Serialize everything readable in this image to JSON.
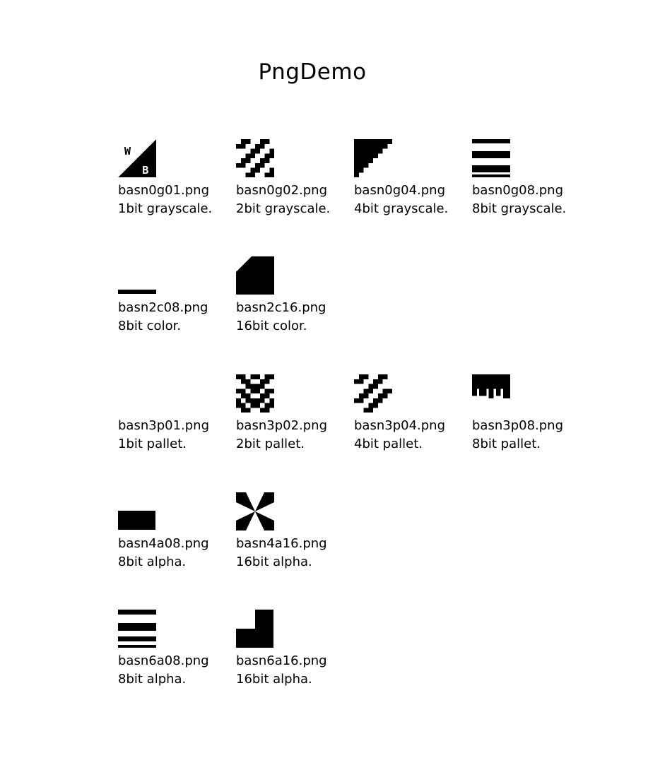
{
  "page": {
    "title": "PngDemo"
  },
  "images": [
    {
      "icon": "basn0g01-thumbnail",
      "filename": "basn0g01.png",
      "description": "1bit grayscale."
    },
    {
      "icon": "basn0g02-thumbnail",
      "filename": "basn0g02.png",
      "description": "2bit grayscale."
    },
    {
      "icon": "basn0g04-thumbnail",
      "filename": "basn0g04.png",
      "description": "4bit grayscale."
    },
    {
      "icon": "basn0g08-thumbnail",
      "filename": "basn0g08.png",
      "description": "8bit grayscale."
    },
    {
      "icon": "basn2c08-thumbnail",
      "filename": "basn2c08.png",
      "description": "8bit color."
    },
    {
      "icon": "basn2c16-thumbnail",
      "filename": "basn2c16.png",
      "description": "16bit color."
    },
    {
      "icon": "basn3p01-thumbnail",
      "filename": "basn3p01.png",
      "description": "1bit pallet."
    },
    {
      "icon": "basn3p02-thumbnail",
      "filename": "basn3p02.png",
      "description": "2bit pallet."
    },
    {
      "icon": "basn3p04-thumbnail",
      "filename": "basn3p04.png",
      "description": "4bit pallet."
    },
    {
      "icon": "basn3p08-thumbnail",
      "filename": "basn3p08.png",
      "description": "8bit pallet."
    },
    {
      "icon": "basn4a08-thumbnail",
      "filename": "basn4a08.png",
      "description": "8bit alpha."
    },
    {
      "icon": "basn4a16-thumbnail",
      "filename": "basn4a16.png",
      "description": "16bit alpha."
    },
    {
      "icon": "basn6a08-thumbnail",
      "filename": "basn6a08.png",
      "description": "8bit alpha."
    },
    {
      "icon": "basn6a16-thumbnail",
      "filename": "basn6a16.png",
      "description": "16bit alpha."
    }
  ],
  "colors": {
    "foreground": "#000000",
    "background": "#ffffff"
  }
}
